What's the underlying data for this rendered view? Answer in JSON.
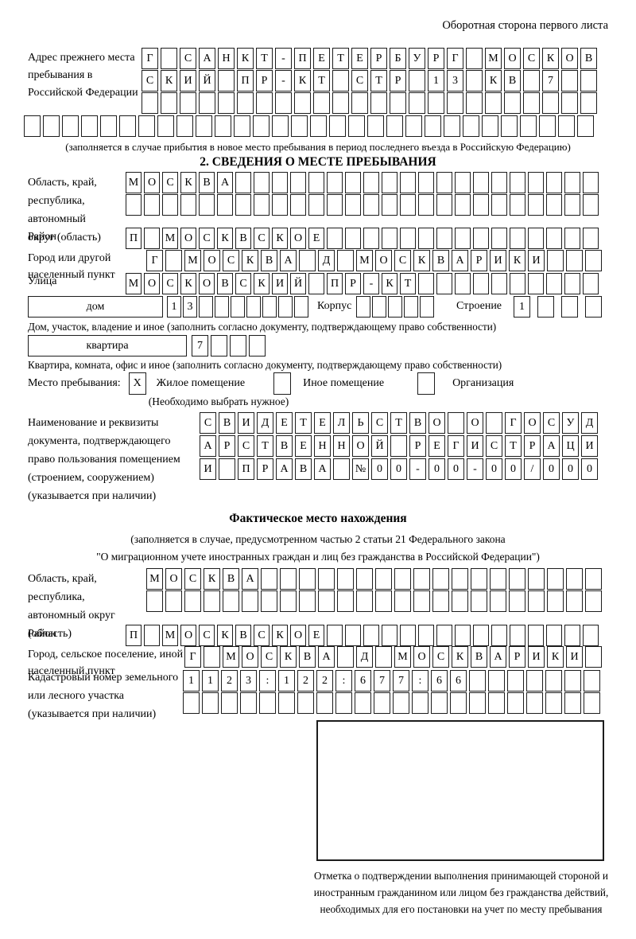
{
  "page": {
    "header_note": "Оборотная сторона первого листа"
  },
  "prev_address": {
    "label": "Адрес прежнего места пребывания в Российской Федерации",
    "row1": "Г САНКТ-ПЕТЕРБУРГ МОСКОВ",
    "row2": "СКИЙ ПР-КТ СТР 13 КВ 7  ",
    "row3": "                        ",
    "row4": "                              ",
    "note": "(заполняется в случае прибытия в новое место пребывания в период последнего въезда в Российскую Федерацию)"
  },
  "section2": {
    "title": "2. СВЕДЕНИЯ О МЕСТЕ ПРЕБЫВАНИЯ",
    "region": {
      "label": "Область, край, республика, автономный округ (область)",
      "row1": "МОСКВА                    ",
      "row2": "                          "
    },
    "district": {
      "label": "Район",
      "row1": "П МОСКВСКОЕ               "
    },
    "city": {
      "label": "Город или другой населенный пункт",
      "row1": "Г МОСКВА Д МОСКВАРИКИ   "
    },
    "street": {
      "label": "Улица",
      "row1": "МОСКОВСКИЙ ПР-КТ          "
    },
    "house": {
      "label": "дом",
      "cells": "13       ",
      "korpus_label": "Корпус",
      "korpus_cells": "     ",
      "stroenie_label": "Строение",
      "stroenie_cells": "1   ",
      "hint": "Дом, участок, владение и иное (заполнить согласно документу, подтверждающему право собственности)"
    },
    "apartment": {
      "label": "квартира",
      "cells": "7   ",
      "hint": "Квартира, комната, офис и иное (заполнить согласно документу, подтверждающему право собственности)"
    },
    "stay_type": {
      "label": "Место пребывания:",
      "check1": "X",
      "option1": "Жилое помещение",
      "check2": " ",
      "option2": "Иное помещение",
      "check3": " ",
      "option3": "Организация",
      "note": "(Необходимо выбрать нужное)"
    },
    "document": {
      "label": "Наименование и реквизиты документа, подтверждающего право пользования помещением (строением, сооружением) (указывается при наличии)",
      "row1": "СВИДЕТЕЛЬСТВО О ГОСУД",
      "row2": "АРСТВЕННОЙ РЕГИСТРАЦИ",
      "row3": "И ПРАВА №00-00-00/000"
    }
  },
  "actual_location": {
    "title": "Фактическое место нахождения",
    "note_line1": "(заполняется в случае, предусмотренном частью 2 статьи 21 Федерального закона",
    "note_line2": "\"О миграционном учете иностранных граждан и лиц без гражданства в Российской Федерации\")",
    "region": {
      "label": "Область, край, республика, автономный округ (область)",
      "row1": "МОСКВА                  ",
      "row2": "                        "
    },
    "district": {
      "label": "Район",
      "row1": "П МОСКВСКОЕ               "
    },
    "city": {
      "label": "Город, сельское поселение, иной населенный пункт",
      "row1": "Г МОСКВА Д МОСКВАРИКИ "
    },
    "cadastral": {
      "label": "Кадастровый номер земельного или лесного участка (указывается при наличии)",
      "row1": "1123:122:677:66       ",
      "row2": "                      "
    },
    "stamp_caption": "Отметка о подтверждении выполнения принимающей стороной и иностранным гражданином или лицом без гражданства действий, необходимых для его постановки на учет по месту пребывания"
  }
}
